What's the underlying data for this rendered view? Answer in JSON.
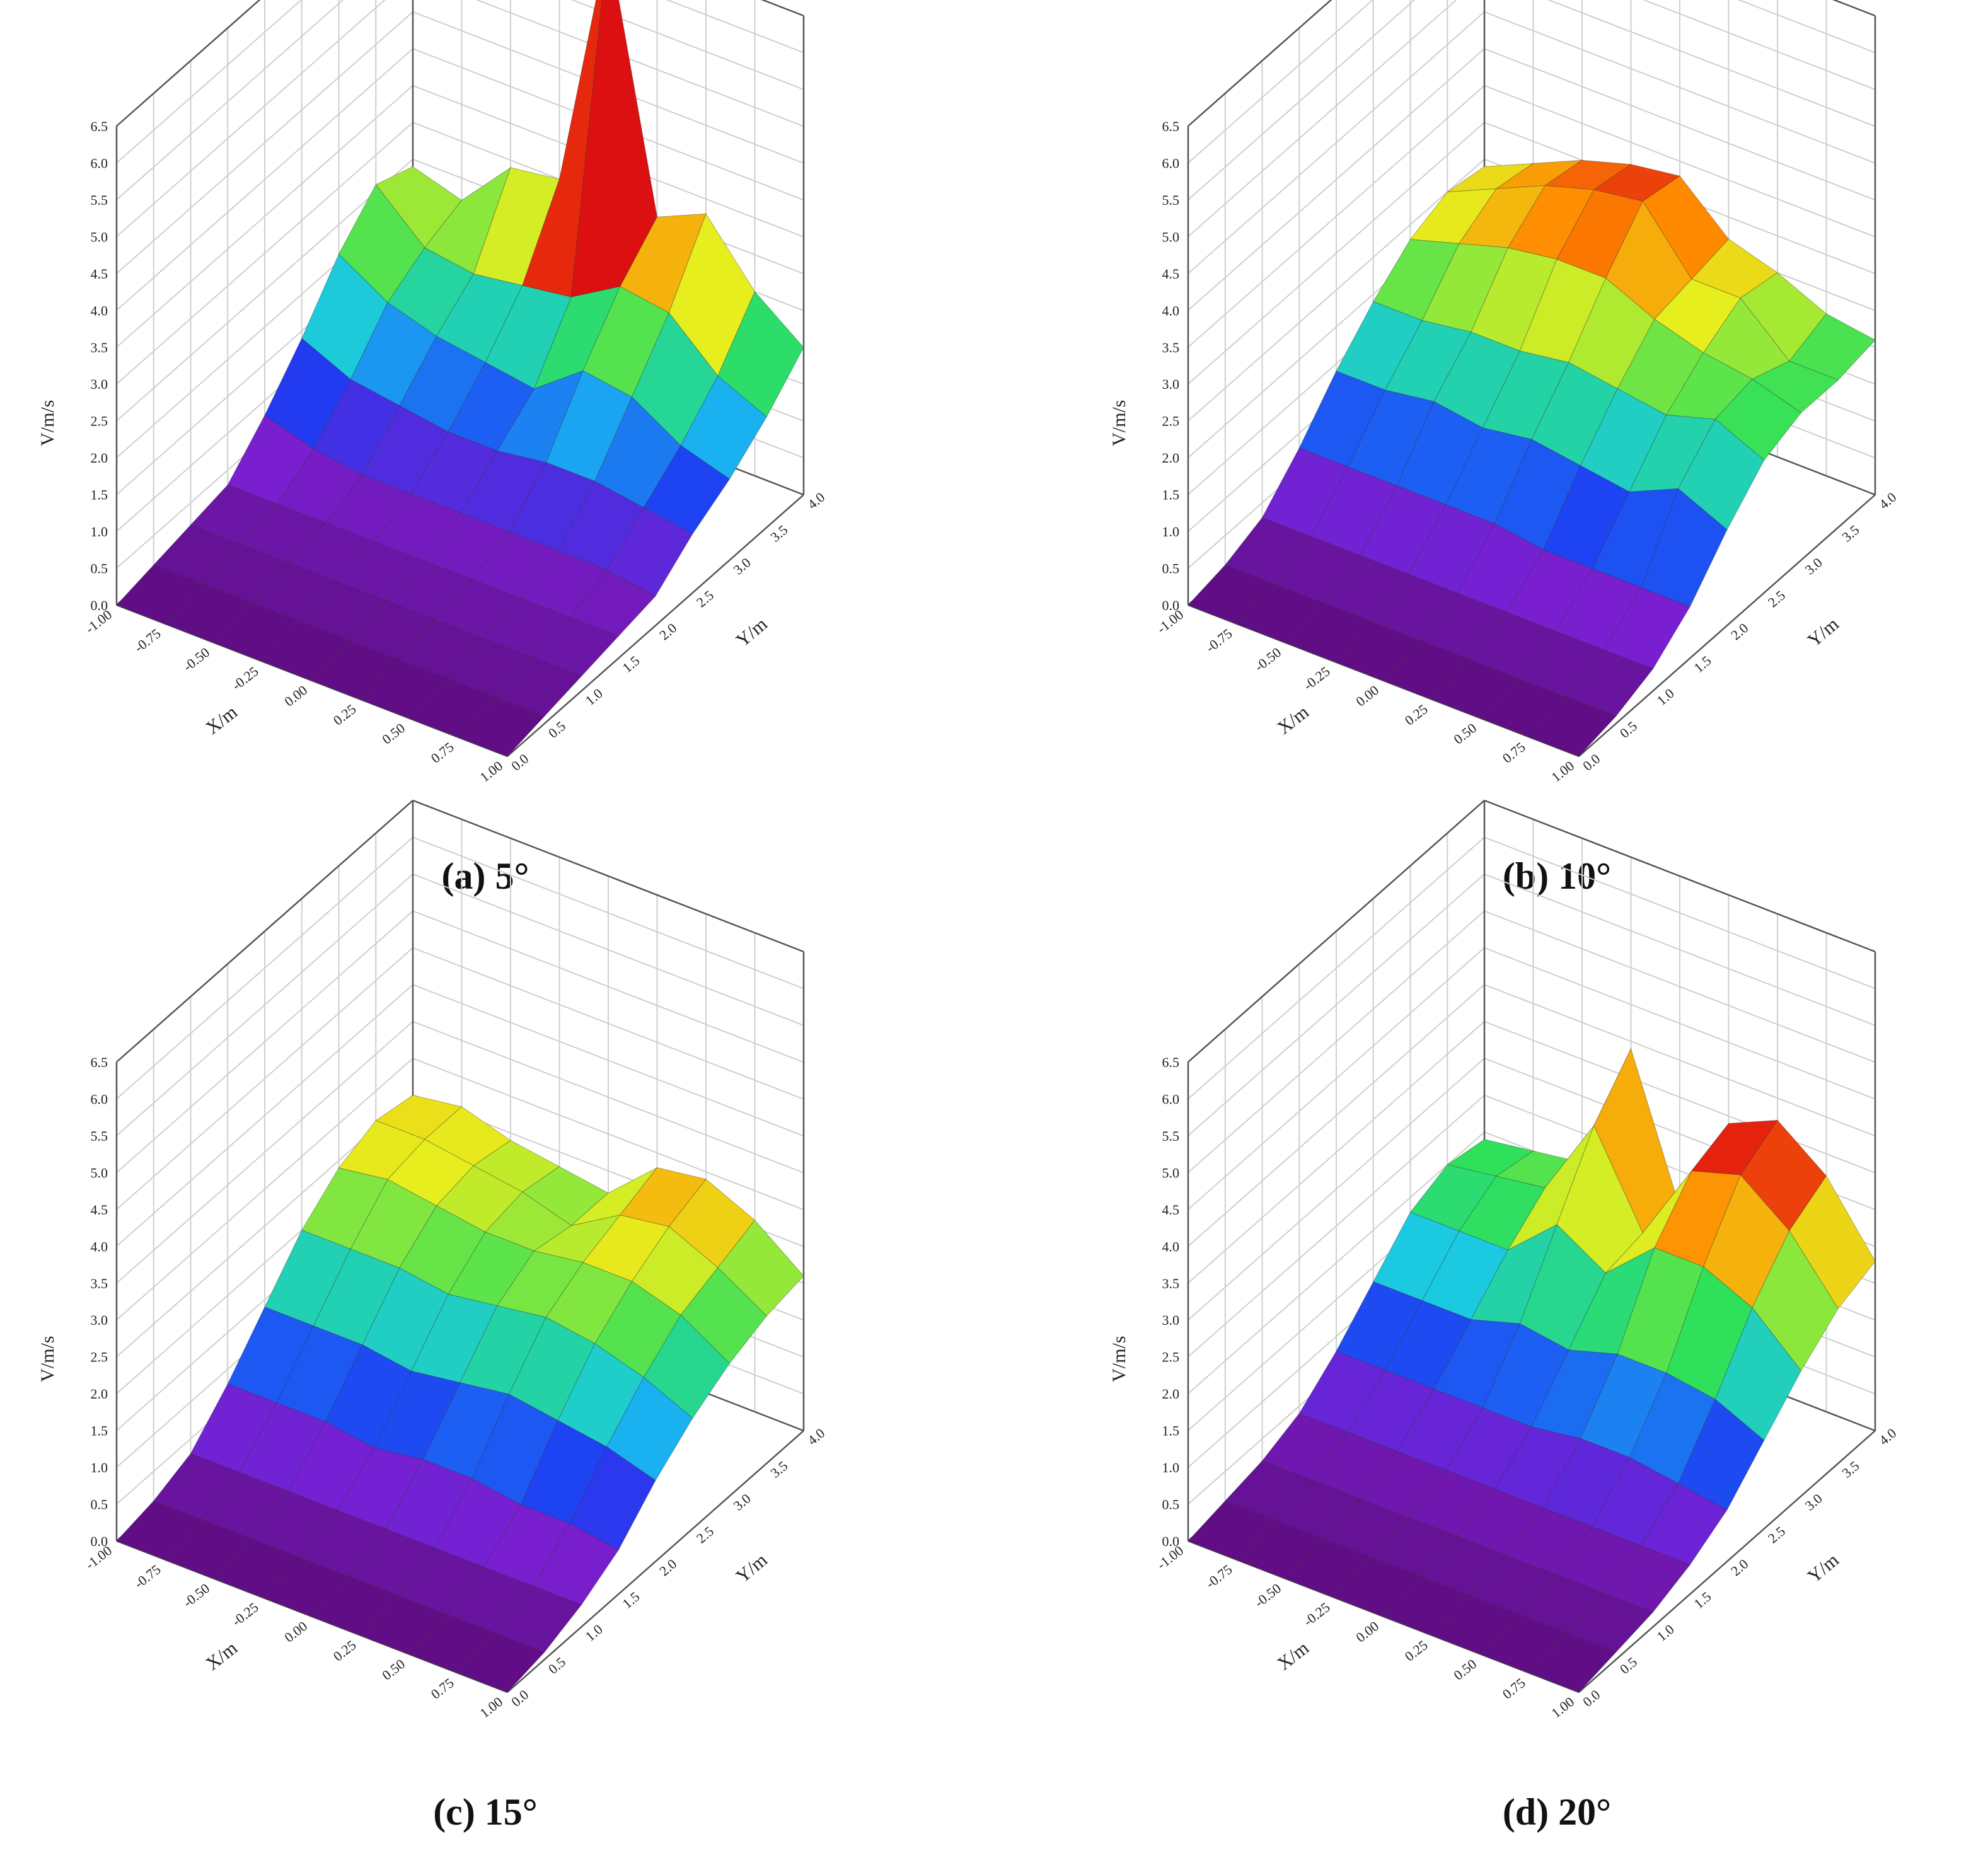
{
  "chart_data": [
    {
      "type": "surface3d",
      "caption": "(a) 5°",
      "xlabel": "X/m",
      "ylabel": "Y/m",
      "zlabel": "V/m/s",
      "x_ticks": [
        "-1.00",
        "-0.75",
        "-0.50",
        "-0.25",
        "0.00",
        "0.25",
        "0.50",
        "0.75",
        "1.00"
      ],
      "y_ticks": [
        "0.0",
        "0.5",
        "1.0",
        "1.5",
        "2.0",
        "2.5",
        "3.0",
        "3.5",
        "4.0"
      ],
      "z_ticks": [
        "0.0",
        "0.5",
        "1.0",
        "1.5",
        "2.0",
        "2.5",
        "3.0",
        "3.5",
        "4.0",
        "4.5",
        "5.0",
        "5.5",
        "6.0",
        "6.5"
      ],
      "xlim": [
        -1.0,
        1.0
      ],
      "ylim": [
        0.0,
        4.0
      ],
      "zlim": [
        0.0,
        6.5
      ],
      "colormap": [
        "#5e0c7e",
        "#7a1fd0",
        "#1e3cf2",
        "#19c6f0",
        "#2fe05a",
        "#e6ee1e",
        "#ff8a00",
        "#e01010",
        "#8e0a0a"
      ],
      "x": [
        -1.0,
        -0.75,
        -0.5,
        -0.25,
        0.0,
        0.25,
        0.5,
        0.75,
        1.0
      ],
      "y": [
        0.0,
        0.5,
        1.0,
        1.5,
        2.0,
        2.5,
        3.0,
        3.5,
        4.0
      ],
      "z": [
        [
          0.0,
          0.1,
          0.2,
          0.3,
          0.8,
          1.4,
          2.1,
          2.6,
          2.4
        ],
        [
          0.0,
          0.1,
          0.2,
          0.3,
          0.6,
          1.1,
          1.7,
          2.0,
          2.2
        ],
        [
          0.0,
          0.1,
          0.2,
          0.3,
          0.5,
          1.0,
          1.5,
          1.9,
          2.9
        ],
        [
          0.0,
          0.1,
          0.2,
          0.3,
          0.5,
          0.9,
          1.4,
          2.0,
          3.0
        ],
        [
          0.0,
          0.1,
          0.2,
          0.3,
          0.5,
          0.9,
          1.3,
          2.1,
          6.5
        ],
        [
          0.0,
          0.1,
          0.2,
          0.3,
          0.5,
          1.0,
          1.8,
          2.5,
          3.0
        ],
        [
          0.0,
          0.1,
          0.2,
          0.3,
          0.5,
          1.0,
          1.7,
          2.4,
          3.3
        ],
        [
          0.0,
          0.1,
          0.2,
          0.3,
          0.5,
          0.9,
          1.3,
          1.8,
          2.5
        ],
        [
          0.0,
          0.1,
          0.2,
          0.3,
          0.4,
          0.8,
          1.1,
          1.5,
          2.0
        ]
      ]
    },
    {
      "type": "surface3d",
      "caption": "(b) 10°",
      "xlabel": "X/m",
      "ylabel": "Y/m",
      "zlabel": "V/m/s",
      "x_ticks": [
        "-1.00",
        "-0.75",
        "-0.50",
        "-0.25",
        "0.00",
        "0.25",
        "0.50",
        "0.75",
        "1.00"
      ],
      "y_ticks": [
        "0.0",
        "0.5",
        "1.0",
        "1.5",
        "2.0",
        "2.5",
        "3.0",
        "3.5",
        "4.0"
      ],
      "z_ticks": [
        "0.0",
        "0.5",
        "1.0",
        "1.5",
        "2.0",
        "2.5",
        "3.0",
        "3.5",
        "4.0",
        "4.5",
        "5.0",
        "5.5",
        "6.0",
        "6.5"
      ],
      "xlim": [
        -1.0,
        1.0
      ],
      "ylim": [
        0.0,
        4.0
      ],
      "zlim": [
        0.0,
        6.5
      ],
      "colormap": [
        "#5e0c7e",
        "#7a1fd0",
        "#1e3cf2",
        "#19c6f0",
        "#2fe05a",
        "#e6ee1e",
        "#ff8a00",
        "#e01010",
        "#8e0a0a"
      ],
      "x": [
        -1.0,
        -0.75,
        -0.5,
        -0.25,
        0.0,
        0.25,
        0.5,
        0.75,
        1.0
      ],
      "y": [
        0.0,
        0.5,
        1.0,
        1.5,
        2.0,
        2.5,
        3.0,
        3.5,
        4.0
      ],
      "z": [
        [
          0.0,
          0.1,
          0.3,
          0.8,
          1.4,
          1.9,
          2.3,
          2.5,
          2.4
        ],
        [
          0.0,
          0.1,
          0.3,
          0.8,
          1.4,
          1.9,
          2.5,
          2.8,
          2.7
        ],
        [
          0.0,
          0.1,
          0.3,
          0.8,
          1.5,
          2.0,
          2.7,
          3.1,
          3.0
        ],
        [
          0.0,
          0.1,
          0.3,
          0.8,
          1.4,
          2.0,
          2.8,
          3.3,
          3.2
        ],
        [
          0.0,
          0.1,
          0.3,
          0.8,
          1.5,
          2.1,
          2.8,
          3.4,
          3.3
        ],
        [
          0.0,
          0.1,
          0.3,
          0.7,
          1.4,
          2.0,
          2.5,
          2.6,
          2.7
        ],
        [
          0.0,
          0.1,
          0.3,
          0.7,
          1.3,
          1.9,
          2.3,
          2.6,
          2.5
        ],
        [
          0.0,
          0.1,
          0.3,
          0.7,
          1.6,
          2.1,
          2.2,
          2.0,
          2.2
        ],
        [
          0.0,
          0.1,
          0.3,
          0.7,
          1.3,
          1.8,
          2.0,
          2.0,
          2.1
        ]
      ]
    },
    {
      "type": "surface3d",
      "caption": "(c) 15°",
      "xlabel": "X/m",
      "ylabel": "Y/m",
      "zlabel": "V/m/s",
      "x_ticks": [
        "-1.00",
        "-0.75",
        "-0.50",
        "-0.25",
        "0.00",
        "0.25",
        "0.50",
        "0.75",
        "1.00"
      ],
      "y_ticks": [
        "0.0",
        "0.5",
        "1.0",
        "1.5",
        "2.0",
        "2.5",
        "3.0",
        "3.5",
        "4.0"
      ],
      "z_ticks": [
        "0.0",
        "0.5",
        "1.0",
        "1.5",
        "2.0",
        "2.5",
        "3.0",
        "3.5",
        "4.0",
        "4.5",
        "5.0",
        "5.5",
        "6.0",
        "6.5"
      ],
      "xlim": [
        -1.0,
        1.0
      ],
      "ylim": [
        0.0,
        4.0
      ],
      "zlim": [
        0.0,
        6.5
      ],
      "colormap": [
        "#5e0c7e",
        "#7a1fd0",
        "#1e3cf2",
        "#19c6f0",
        "#2fe05a",
        "#e6ee1e",
        "#ff8a00",
        "#e01010",
        "#8e0a0a"
      ],
      "x": [
        -1.0,
        -0.75,
        -0.5,
        -0.25,
        0.0,
        0.25,
        0.5,
        0.75,
        1.0
      ],
      "y": [
        0.0,
        0.5,
        1.0,
        1.5,
        2.0,
        2.5,
        3.0,
        3.5,
        4.0
      ],
      "z": [
        [
          0.0,
          0.1,
          0.3,
          0.8,
          1.4,
          2.0,
          2.4,
          2.6,
          2.5
        ],
        [
          0.0,
          0.1,
          0.3,
          0.8,
          1.4,
          2.0,
          2.5,
          2.6,
          2.6
        ],
        [
          0.0,
          0.1,
          0.3,
          0.8,
          1.4,
          2.0,
          2.4,
          2.5,
          2.4
        ],
        [
          0.0,
          0.1,
          0.3,
          0.7,
          1.3,
          1.9,
          2.3,
          2.4,
          2.3
        ],
        [
          0.0,
          0.1,
          0.3,
          0.8,
          1.4,
          2.0,
          2.3,
          2.2,
          2.2
        ],
        [
          0.0,
          0.1,
          0.3,
          0.8,
          1.5,
          2.1,
          2.4,
          2.6,
          2.8
        ],
        [
          0.0,
          0.1,
          0.3,
          0.7,
          1.4,
          2.0,
          2.4,
          2.7,
          2.9
        ],
        [
          0.0,
          0.1,
          0.3,
          0.7,
          1.3,
          1.8,
          2.2,
          2.4,
          2.6
        ],
        [
          0.0,
          0.1,
          0.3,
          0.6,
          1.1,
          1.5,
          1.8,
          2.0,
          2.1
        ]
      ]
    },
    {
      "type": "surface3d",
      "caption": "(d) 20°",
      "xlabel": "X/m",
      "ylabel": "Y/m",
      "zlabel": "V/m/s",
      "x_ticks": [
        "-1.00",
        "-0.75",
        "-0.50",
        "-0.25",
        "0.00",
        "0.25",
        "0.50",
        "0.75",
        "1.00"
      ],
      "y_ticks": [
        "0.0",
        "0.5",
        "1.0",
        "1.5",
        "2.0",
        "2.5",
        "3.0",
        "3.5",
        "4.0"
      ],
      "z_ticks": [
        "0.0",
        "0.5",
        "1.0",
        "1.5",
        "2.0",
        "2.5",
        "3.0",
        "3.5",
        "4.0",
        "4.5",
        "5.0",
        "5.5",
        "6.0",
        "6.5"
      ],
      "xlim": [
        -1.0,
        1.0
      ],
      "ylim": [
        0.0,
        4.0
      ],
      "zlim": [
        0.0,
        6.5
      ],
      "colormap": [
        "#5e0c7e",
        "#7a1fd0",
        "#1e3cf2",
        "#19c6f0",
        "#2fe05a",
        "#e6ee1e",
        "#ff8a00",
        "#e01010",
        "#8e0a0a"
      ],
      "x": [
        -1.0,
        -0.75,
        -0.5,
        -0.25,
        0.0,
        0.25,
        0.5,
        0.75,
        1.0
      ],
      "y": [
        0.0,
        0.5,
        1.0,
        1.5,
        2.0,
        2.5,
        3.0,
        3.5,
        4.0
      ],
      "z": [
        [
          0.0,
          0.1,
          0.2,
          0.4,
          0.8,
          1.3,
          1.8,
          2.0,
          1.9
        ],
        [
          0.0,
          0.1,
          0.2,
          0.4,
          0.8,
          1.3,
          1.8,
          2.1,
          2.0
        ],
        [
          0.0,
          0.1,
          0.2,
          0.4,
          0.8,
          1.3,
          1.8,
          2.2,
          2.1
        ],
        [
          0.0,
          0.1,
          0.2,
          0.4,
          0.8,
          1.5,
          2.4,
          3.3,
          3.9
        ],
        [
          0.0,
          0.1,
          0.2,
          0.4,
          0.8,
          1.4,
          2.0,
          2.1,
          2.0
        ],
        [
          0.0,
          0.1,
          0.2,
          0.4,
          0.9,
          1.6,
          2.6,
          3.2,
          3.4
        ],
        [
          0.0,
          0.1,
          0.2,
          0.4,
          0.9,
          1.6,
          2.6,
          3.4,
          3.7
        ],
        [
          0.0,
          0.1,
          0.2,
          0.4,
          0.8,
          1.5,
          2.3,
          2.9,
          3.2
        ],
        [
          0.0,
          0.1,
          0.2,
          0.4,
          0.7,
          1.2,
          1.7,
          2.1,
          2.3
        ]
      ]
    }
  ]
}
